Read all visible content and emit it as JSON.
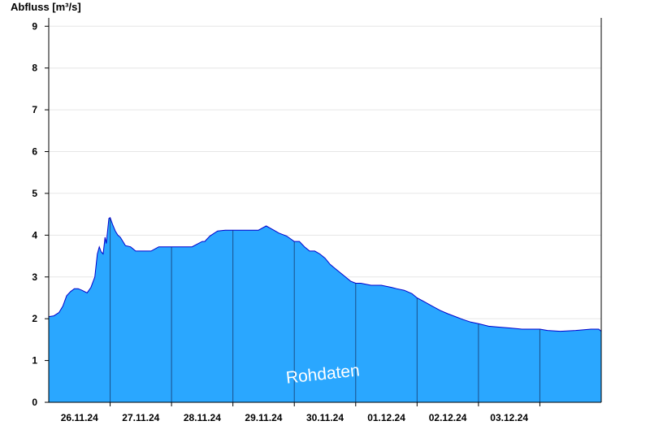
{
  "chart_data": {
    "type": "area",
    "ylabel": "Abfluss [m³/s]",
    "ylim": [
      0,
      9.2
    ],
    "yticks": [
      0,
      1,
      2,
      3,
      4,
      5,
      6,
      7,
      8,
      9
    ],
    "xlim": [
      "2024-11-25T00:00",
      "2024-12-04T00:00"
    ],
    "xtick_labels": [
      "26.11.24",
      "27.11.24",
      "28.11.24",
      "29.11.24",
      "30.11.24",
      "01.12.24",
      "02.12.24",
      "03.12.24"
    ],
    "day_boundaries": [
      "2024-11-26T00:00",
      "2024-11-27T00:00",
      "2024-11-28T00:00",
      "2024-11-29T00:00",
      "2024-11-30T00:00",
      "2024-12-01T00:00",
      "2024-12-02T00:00",
      "2024-12-03T00:00"
    ],
    "annotation": "Rohdaten",
    "grid": true,
    "colors": {
      "fill": "#2aa7ff",
      "line": "#0000cc",
      "grid": "#e6e6e6",
      "day_line": "#1a4f8a"
    },
    "series": [
      {
        "x": [
          "2024-11-25T00:00",
          "2024-11-25T02:00",
          "2024-11-25T04:00",
          "2024-11-25T05:30",
          "2024-11-25T07:00",
          "2024-11-25T08:30",
          "2024-11-25T10:00",
          "2024-11-25T11:30",
          "2024-11-25T13:00",
          "2024-11-25T15:00",
          "2024-11-25T16:30",
          "2024-11-25T18:00",
          "2024-11-25T19:00",
          "2024-11-25T19:45",
          "2024-11-25T20:30",
          "2024-11-25T21:15",
          "2024-11-25T22:00",
          "2024-11-25T22:30",
          "2024-11-25T23:00",
          "2024-11-25T23:30",
          "2024-11-26T00:00",
          "2024-11-26T01:00",
          "2024-11-26T02:00",
          "2024-11-26T03:00",
          "2024-11-26T04:00",
          "2024-11-26T05:00",
          "2024-11-26T06:00",
          "2024-11-26T08:00",
          "2024-11-26T10:00",
          "2024-11-26T13:00",
          "2024-11-26T16:00",
          "2024-11-26T19:00",
          "2024-11-26T22:00",
          "2024-11-26T23:30",
          "2024-11-27T01:00",
          "2024-11-27T04:00",
          "2024-11-27T08:00",
          "2024-11-27T12:00",
          "2024-11-27T13:00",
          "2024-11-27T15:00",
          "2024-11-27T18:00",
          "2024-11-27T21:00",
          "2024-11-28T00:00",
          "2024-11-28T02:30",
          "2024-11-28T04:00",
          "2024-11-28T05:30",
          "2024-11-28T08:00",
          "2024-11-28T10:00",
          "2024-11-28T13:00",
          "2024-11-28T16:00",
          "2024-11-28T18:00",
          "2024-11-28T21:00",
          "2024-11-29T00:00",
          "2024-11-29T02:00",
          "2024-11-29T04:00",
          "2024-11-29T06:00",
          "2024-11-29T08:00",
          "2024-11-29T10:00",
          "2024-11-29T12:00",
          "2024-11-29T14:00",
          "2024-11-29T16:00",
          "2024-11-29T18:00",
          "2024-11-29T20:00",
          "2024-11-29T22:00",
          "2024-11-30T00:00",
          "2024-11-30T02:00",
          "2024-11-30T06:00",
          "2024-11-30T10:00",
          "2024-11-30T14:00",
          "2024-11-30T16:00",
          "2024-11-30T19:00",
          "2024-11-30T22:00",
          "2024-12-01T00:00",
          "2024-12-01T03:00",
          "2024-12-01T06:00",
          "2024-12-01T09:00",
          "2024-12-01T12:00",
          "2024-12-01T15:00",
          "2024-12-01T18:00",
          "2024-12-01T21:00",
          "2024-12-02T00:00",
          "2024-12-02T04:00",
          "2024-12-02T08:00",
          "2024-12-02T12:00",
          "2024-12-02T17:00",
          "2024-12-02T18:30",
          "2024-12-02T20:00",
          "2024-12-02T22:00",
          "2024-12-03T00:00",
          "2024-12-03T03:00",
          "2024-12-03T08:00",
          "2024-12-03T14:00",
          "2024-12-03T20:00",
          "2024-12-03T23:00",
          "2024-12-04T00:00"
        ],
        "y": [
          2.05,
          2.07,
          2.15,
          2.3,
          2.55,
          2.65,
          2.72,
          2.72,
          2.68,
          2.62,
          2.75,
          3.0,
          3.55,
          3.72,
          3.6,
          3.55,
          3.95,
          3.8,
          4.1,
          4.4,
          4.42,
          4.25,
          4.1,
          4.0,
          3.95,
          3.85,
          3.75,
          3.72,
          3.62,
          3.62,
          3.62,
          3.72,
          3.72,
          3.72,
          3.72,
          3.72,
          3.72,
          3.85,
          3.85,
          3.98,
          4.1,
          4.12,
          4.12,
          4.12,
          4.12,
          4.12,
          4.12,
          4.12,
          4.22,
          4.12,
          4.05,
          3.98,
          3.85,
          3.85,
          3.72,
          3.62,
          3.62,
          3.55,
          3.45,
          3.3,
          3.2,
          3.1,
          3.0,
          2.9,
          2.85,
          2.85,
          2.8,
          2.8,
          2.75,
          2.72,
          2.68,
          2.6,
          2.5,
          2.4,
          2.3,
          2.2,
          2.12,
          2.05,
          1.98,
          1.92,
          1.88,
          1.82,
          1.8,
          1.78,
          1.75,
          1.75,
          1.75,
          1.75,
          1.75,
          1.72,
          1.7,
          1.72,
          1.75,
          1.75,
          1.7
        ]
      }
    ]
  }
}
